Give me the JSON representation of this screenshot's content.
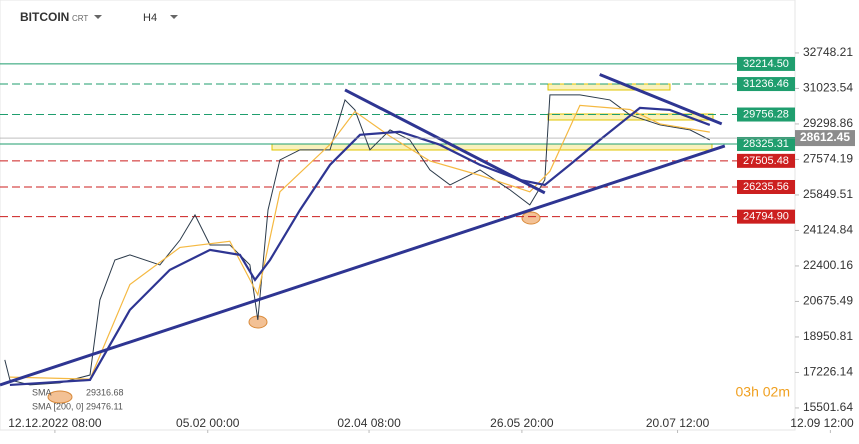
{
  "header": {
    "symbol": "BITCOIN",
    "source": "CRT",
    "interval": "H4"
  },
  "chart_data": {
    "type": "line",
    "xlim": [
      -19.4,
      261.5
    ],
    "xticks": [
      {
        "value": 0,
        "label": "12.12.2022 08:00"
      },
      {
        "value": 54,
        "label": "05.02 00:00"
      },
      {
        "value": 111,
        "label": "02.04 08:00"
      },
      {
        "value": 165,
        "label": "26.05 20:00"
      },
      {
        "value": 220,
        "label": "20.07 12:00"
      },
      {
        "value": 274,
        "label": "12.09 12:00"
      }
    ],
    "ylim": [
      14430,
      35320
    ],
    "yticks": [
      32748.21,
      31023.54,
      29298.86,
      27574.19,
      25849.51,
      24124.84,
      22400.16,
      20675.49,
      18950.81,
      17226.14,
      15501.64
    ],
    "series": [
      {
        "name": "BITCOIN",
        "color": "#2b3a4a",
        "width": 1,
        "x": [
          -17.7,
          -15.9,
          -8.8,
          1.8,
          12.4,
          15.9,
          21.2,
          26.5,
          37.1,
          44.2,
          49.5,
          54.8,
          61.8,
          68.9,
          71.7,
          75.3,
          79.5,
          86.6,
          97.2,
          102.5,
          106,
          111.3,
          118.4,
          125.4,
          132.5,
          139.6,
          150.2,
          160.8,
          167.8,
          173.1,
          174.9,
          185.5,
          196.1,
          203.2,
          213.8,
          224.4,
          231.4
        ],
        "values": [
          17835,
          16860,
          16620,
          16720,
          17100,
          20750,
          22690,
          22935,
          22450,
          23660,
          24880,
          23420,
          23420,
          22450,
          19780,
          25120,
          27550,
          28040,
          28040,
          30465,
          29980,
          28040,
          29010,
          28520,
          27065,
          26335,
          27065,
          26095,
          25365,
          26580,
          30710,
          30710,
          30465,
          29735,
          29250,
          29010,
          28520
        ]
      },
      {
        "name": "SMA",
        "color": "#f5b942",
        "width": 1.2,
        "value_label": "29316.68",
        "x": [
          -15.9,
          12.4,
          26.5,
          44.2,
          61.8,
          71.7,
          79.5,
          97.2,
          106,
          118.4,
          132.5,
          150.2,
          167.8,
          174.9,
          185.5,
          203.2,
          213.8,
          231.4
        ],
        "values": [
          17000,
          16900,
          21500,
          23300,
          23600,
          21000,
          26000,
          28300,
          29900,
          28700,
          27500,
          26800,
          26000,
          27000,
          30200,
          30000,
          29300,
          28900
        ]
      },
      {
        "name": "SMA [200, 0]",
        "color": "#2e3592",
        "width": 2.2,
        "value_label": "29476.11",
        "x": [
          -15.9,
          12.4,
          26.5,
          40.6,
          54.8,
          65.4,
          70.7,
          76,
          86.6,
          97.2,
          107.8,
          121.9,
          136,
          150.2,
          164.3,
          173.1,
          181.9,
          192.5,
          206.7,
          217.3,
          231.4
        ],
        "values": [
          16620,
          16860,
          20265,
          22210,
          23180,
          22935,
          21720,
          22690,
          25120,
          27310,
          28770,
          28920,
          28290,
          27310,
          26580,
          26335,
          27310,
          28520,
          30080,
          29980,
          29250
        ]
      }
    ],
    "trendlines": [
      {
        "x": [
          -19.4,
          236.7
        ],
        "values": [
          16620,
          28230
        ]
      },
      {
        "x": [
          102.5,
          173.1
        ],
        "values": [
          30950,
          25950
        ]
      },
      {
        "x": [
          192.5,
          235.6
        ],
        "values": [
          31700,
          29300
        ]
      }
    ],
    "levels": [
      {
        "value": 32214.5,
        "label": "32214.50",
        "color": "#1f9e6e",
        "dash": false
      },
      {
        "value": 31236.46,
        "label": "31236.46",
        "color": "#1f9e6e",
        "dash": true
      },
      {
        "value": 29756.28,
        "label": "29756.28",
        "color": "#1f9e6e",
        "dash": true
      },
      {
        "value": 28325.31,
        "label": "28325.31",
        "color": "#1f9e6e",
        "dash": false
      },
      {
        "value": 27505.48,
        "label": "27505.48",
        "color": "#cc1f1f",
        "dash": true
      },
      {
        "value": 26235.56,
        "label": "26235.56",
        "color": "#cc1f1f",
        "dash": true
      },
      {
        "value": 24794.9,
        "label": "24794.90",
        "color": "#cc1f1f",
        "dash": true
      }
    ],
    "last_price": 28612.45,
    "timer": "03h 02m"
  }
}
